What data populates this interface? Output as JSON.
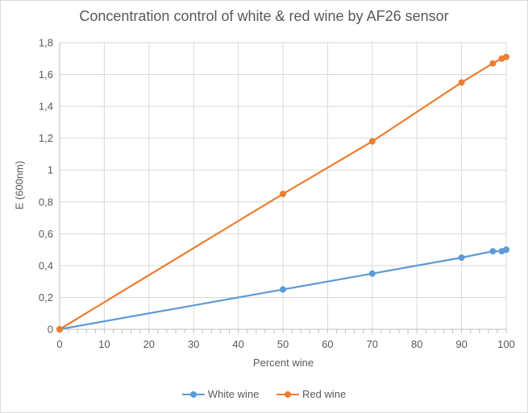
{
  "chart_data": {
    "type": "line",
    "title": "Concentration control of white & red wine by AF26 sensor",
    "xlabel": "Percent wine",
    "ylabel": "E (600nm)",
    "xlim": [
      0,
      100
    ],
    "ylim": [
      0,
      1.8
    ],
    "x_ticks": [
      "0",
      "10",
      "20",
      "30",
      "40",
      "50",
      "60",
      "70",
      "80",
      "90",
      "100"
    ],
    "y_ticks": [
      "0",
      "0,2",
      "0,4",
      "0,6",
      "0,8",
      "1",
      "1,2",
      "1,4",
      "1,6",
      "1,8"
    ],
    "grid": "vertical and horizontal",
    "legend_position": "bottom",
    "series": [
      {
        "name": "White wine",
        "color": "#5b9bd5",
        "points": [
          [
            0,
            0
          ],
          [
            50,
            0.25
          ],
          [
            70,
            0.35
          ],
          [
            90,
            0.45
          ],
          [
            97,
            0.49
          ],
          [
            99,
            0.49
          ],
          [
            100,
            0.5
          ]
        ]
      },
      {
        "name": "Red wine",
        "color": "#ed7d31",
        "points": [
          [
            0,
            0
          ],
          [
            50,
            0.85
          ],
          [
            70,
            1.18
          ],
          [
            90,
            1.55
          ],
          [
            97,
            1.67
          ],
          [
            99,
            1.7
          ],
          [
            100,
            1.71
          ]
        ]
      }
    ]
  }
}
